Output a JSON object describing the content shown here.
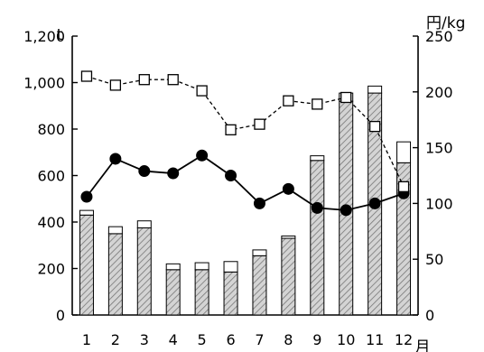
{
  "chart_data": {
    "type": "bar",
    "categories": [
      "1",
      "2",
      "3",
      "4",
      "5",
      "6",
      "7",
      "8",
      "9",
      "10",
      "11",
      "12"
    ],
    "x_unit": "月",
    "y_left": {
      "unit": "t",
      "ylim": [
        0,
        1200
      ],
      "ticks": [
        "0",
        "200",
        "400",
        "600",
        "800",
        "1,000",
        "1,200"
      ]
    },
    "y_right": {
      "unit": "円/kg",
      "ylim": [
        0,
        250
      ],
      "ticks": [
        "0",
        "50",
        "100",
        "150",
        "200",
        "250"
      ]
    },
    "series": [
      {
        "type": "bar",
        "axis": "left",
        "pattern": "hatched",
        "values": [
          430,
          350,
          375,
          195,
          195,
          185,
          255,
          330,
          665,
          920,
          955,
          655
        ]
      },
      {
        "type": "bar",
        "axis": "left",
        "pattern": "white",
        "stacked": true,
        "values": [
          20,
          30,
          30,
          25,
          30,
          45,
          25,
          10,
          20,
          35,
          30,
          90
        ]
      },
      {
        "type": "line",
        "axis": "right",
        "marker": "filled-circle",
        "line_style": "solid",
        "values": [
          106,
          140,
          129,
          127,
          143,
          125,
          100,
          113,
          96,
          94,
          100,
          109
        ]
      },
      {
        "type": "line",
        "axis": "right",
        "marker": "open-square",
        "line_style": "dashed",
        "values": [
          214,
          206,
          211,
          211,
          201,
          166,
          171,
          192,
          189,
          195,
          169,
          115
        ]
      }
    ],
    "grid": false,
    "legend": "none",
    "colors": {
      "hatch": "#777777",
      "bar_fill": "#d4d4d4",
      "outline": "#000000",
      "background": "#ffffff"
    }
  }
}
